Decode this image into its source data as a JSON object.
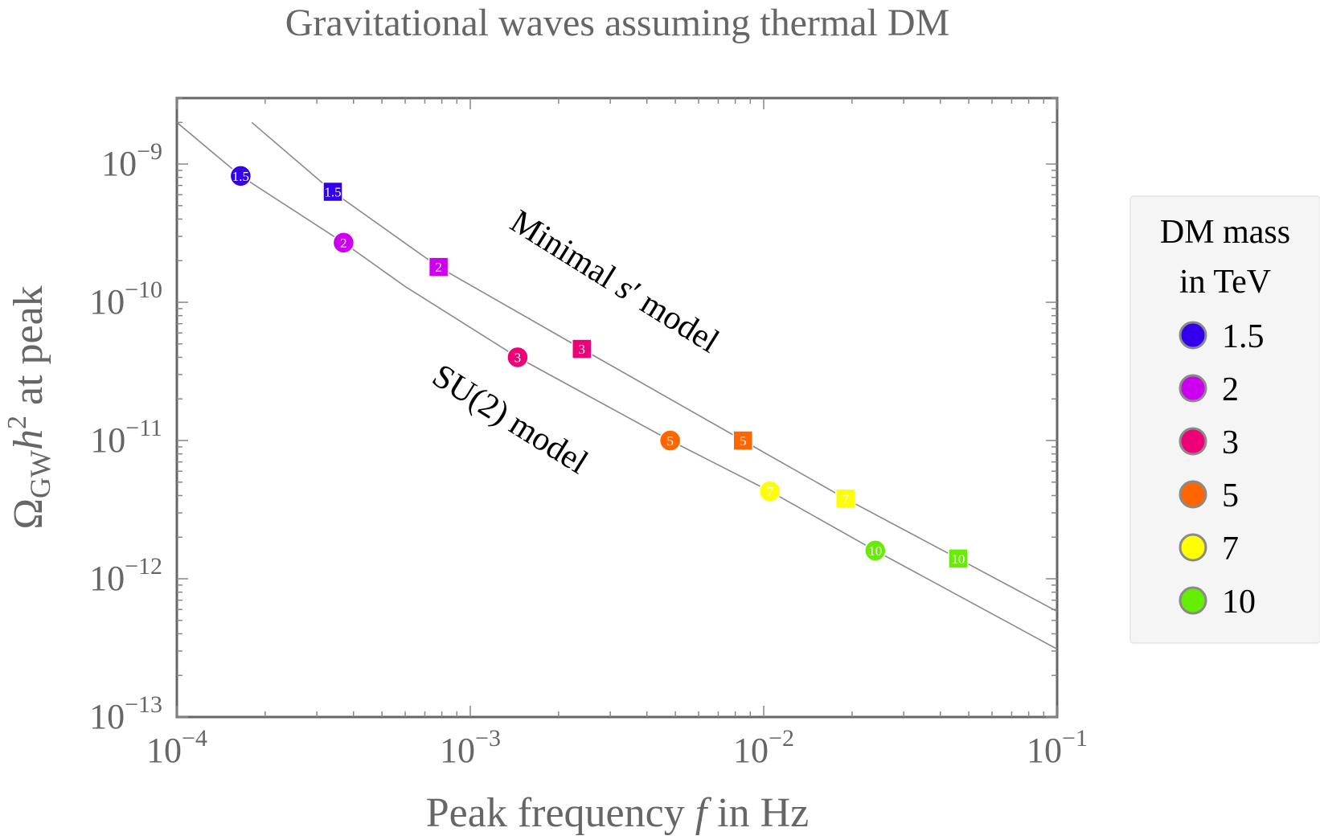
{
  "chart_data": {
    "type": "scatter",
    "title": "Gravitational waves assuming thermal DM",
    "xlabel": "Peak frequency f in Hz",
    "ylabel": "ΩGW h² at peak",
    "xscale": "log",
    "yscale": "log",
    "xlim": [
      0.0001,
      0.1
    ],
    "ylim": [
      1e-13,
      3e-09
    ],
    "x_ticks": [
      {
        "base": "10",
        "exp": "−4",
        "value": 0.0001
      },
      {
        "base": "10",
        "exp": "−3",
        "value": 0.001
      },
      {
        "base": "10",
        "exp": "−2",
        "value": 0.01
      },
      {
        "base": "10",
        "exp": "−1",
        "value": 0.1
      }
    ],
    "y_ticks": [
      {
        "base": "10",
        "exp": "−9",
        "value": 1e-09
      },
      {
        "base": "10",
        "exp": "−10",
        "value": 1e-10
      },
      {
        "base": "10",
        "exp": "−11",
        "value": 1e-11
      },
      {
        "base": "10",
        "exp": "−12",
        "value": 1e-12
      },
      {
        "base": "10",
        "exp": "−13",
        "value": 1e-13
      }
    ],
    "legend": {
      "title_line1": "DM mass",
      "title_line2": "in TeV",
      "position": "right",
      "entries": [
        {
          "label": "1.5",
          "color": "#3300ee"
        },
        {
          "label": "2",
          "color": "#cc00ee"
        },
        {
          "label": "3",
          "color": "#ee0077"
        },
        {
          "label": "5",
          "color": "#ff6600"
        },
        {
          "label": "7",
          "color": "#ffff00"
        },
        {
          "label": "10",
          "color": "#66ee00"
        }
      ]
    },
    "series": [
      {
        "name": "SU(2) model",
        "marker": "circle",
        "points": [
          {
            "mass": "1.5",
            "x": 0.000165,
            "y": 8.2e-10
          },
          {
            "mass": "2",
            "x": 0.00037,
            "y": 2.7e-10
          },
          {
            "mass": "3",
            "x": 0.00145,
            "y": 4e-11
          },
          {
            "mass": "5",
            "x": 0.0048,
            "y": 1e-11
          },
          {
            "mass": "7",
            "x": 0.0105,
            "y": 4.3e-12
          },
          {
            "mass": "10",
            "x": 0.024,
            "y": 1.6e-12
          }
        ],
        "curve": [
          [
            0.0001,
            2e-09
          ],
          [
            0.000165,
            8.2e-10
          ],
          [
            0.00037,
            2.7e-10
          ],
          [
            0.0006,
            1.3e-10
          ],
          [
            0.00145,
            4e-11
          ],
          [
            0.0048,
            1e-11
          ],
          [
            0.0105,
            4.3e-12
          ],
          [
            0.024,
            1.6e-12
          ],
          [
            0.1,
            3.1e-13
          ]
        ]
      },
      {
        "name": "Minimal s′ model",
        "marker": "square",
        "points": [
          {
            "mass": "1.5",
            "x": 0.00034,
            "y": 6.3e-10
          },
          {
            "mass": "2",
            "x": 0.00078,
            "y": 1.8e-10
          },
          {
            "mass": "3",
            "x": 0.0024,
            "y": 4.6e-11
          },
          {
            "mass": "5",
            "x": 0.0085,
            "y": 1e-11
          },
          {
            "mass": "7",
            "x": 0.019,
            "y": 3.8e-12
          },
          {
            "mass": "10",
            "x": 0.046,
            "y": 1.4e-12
          }
        ],
        "curve": [
          [
            0.00018,
            2e-09
          ],
          [
            0.00034,
            6.3e-10
          ],
          [
            0.00078,
            1.8e-10
          ],
          [
            0.0024,
            4.6e-11
          ],
          [
            0.0085,
            1e-11
          ],
          [
            0.019,
            3.8e-12
          ],
          [
            0.046,
            1.4e-12
          ],
          [
            0.1,
            5.8e-13
          ]
        ]
      }
    ],
    "annotations": [
      {
        "id": "su2",
        "text": "SU(2) model"
      },
      {
        "id": "minimal",
        "text_main": "Minimal ",
        "text_s": "s",
        "text_prime": "′",
        "text_model": " model"
      }
    ]
  }
}
